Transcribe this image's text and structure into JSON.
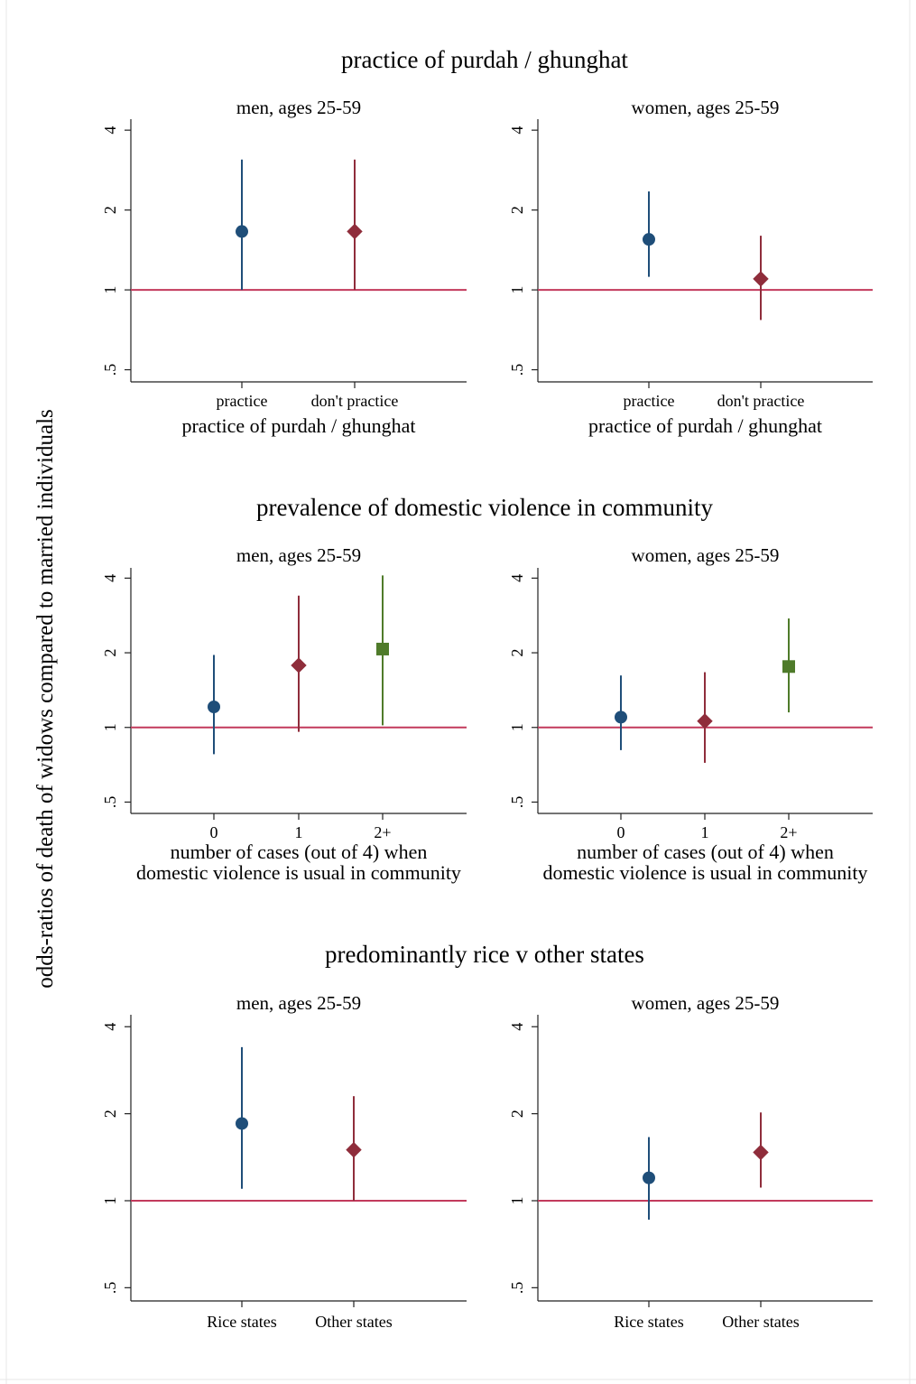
{
  "figure": {
    "ylabel": "odds-ratios of death of widows compared to married individuals",
    "colors": {
      "blue": "#1f4e79",
      "red": "#8f2d3b",
      "green": "#4f7b2a",
      "reference": "#c23a5c"
    },
    "icons": {
      "circle": "circle-marker-icon",
      "diamond": "diamond-marker-icon",
      "square": "square-marker-icon"
    }
  },
  "chart_data": [
    {
      "type": "scatter",
      "title": "practice of purdah / ghunghat",
      "subtitle": "men, ages 25-59",
      "xlabel": "practice of purdah / ghunghat",
      "categories": [
        "practice",
        "don't practice"
      ],
      "ylabel": "",
      "yscale": "log",
      "ylim": [
        0.45,
        4.4
      ],
      "yticks": [
        ".5",
        "1",
        "2",
        "4"
      ],
      "reference_line": 1,
      "points": [
        {
          "category": "practice",
          "estimate": 1.66,
          "ci_low": 1.0,
          "ci_high": 3.1,
          "marker": "circle",
          "color": "#1f4e79"
        },
        {
          "category": "don't practice",
          "estimate": 1.66,
          "ci_low": 1.0,
          "ci_high": 3.1,
          "marker": "diamond",
          "color": "#8f2d3b"
        }
      ]
    },
    {
      "type": "scatter",
      "title": "practice of purdah / ghunghat",
      "subtitle": "women, ages 25-59",
      "xlabel": "practice of purdah / ghunghat",
      "categories": [
        "practice",
        "don't practice"
      ],
      "ylabel": "",
      "yscale": "log",
      "ylim": [
        0.45,
        4.4
      ],
      "yticks": [
        ".5",
        "1",
        "2",
        "4"
      ],
      "reference_line": 1,
      "points": [
        {
          "category": "practice",
          "estimate": 1.55,
          "ci_low": 1.12,
          "ci_high": 2.35,
          "marker": "circle",
          "color": "#1f4e79"
        },
        {
          "category": "don't practice",
          "estimate": 1.1,
          "ci_low": 0.77,
          "ci_high": 1.6,
          "marker": "diamond",
          "color": "#8f2d3b"
        }
      ]
    },
    {
      "type": "scatter",
      "title": "prevalence of domestic violence in community",
      "subtitle": "men, ages 25-59",
      "xlabel": "number of cases (out of 4) when\ndomestic violence is usual in community",
      "categories": [
        "0",
        "1",
        "2+"
      ],
      "ylabel": "",
      "yscale": "log",
      "ylim": [
        0.45,
        4.4
      ],
      "yticks": [
        ".5",
        "1",
        "2",
        "4"
      ],
      "reference_line": 1,
      "points": [
        {
          "category": "0",
          "estimate": 1.21,
          "ci_low": 0.78,
          "ci_high": 1.96,
          "marker": "circle",
          "color": "#1f4e79"
        },
        {
          "category": "1",
          "estimate": 1.78,
          "ci_low": 0.96,
          "ci_high": 3.4,
          "marker": "diamond",
          "color": "#8f2d3b"
        },
        {
          "category": "2+",
          "estimate": 2.07,
          "ci_low": 1.02,
          "ci_high": 4.1,
          "marker": "square",
          "color": "#4f7b2a"
        }
      ]
    },
    {
      "type": "scatter",
      "title": "prevalence of domestic violence in community",
      "subtitle": "women, ages 25-59",
      "xlabel": "number of cases (out of 4) when\ndomestic violence is usual in community",
      "categories": [
        "0",
        "1",
        "2+"
      ],
      "ylabel": "",
      "yscale": "log",
      "ylim": [
        0.45,
        4.4
      ],
      "yticks": [
        ".5",
        "1",
        "2",
        "4"
      ],
      "reference_line": 1,
      "points": [
        {
          "category": "0",
          "estimate": 1.1,
          "ci_low": 0.81,
          "ci_high": 1.62,
          "marker": "circle",
          "color": "#1f4e79"
        },
        {
          "category": "1",
          "estimate": 1.06,
          "ci_low": 0.72,
          "ci_high": 1.67,
          "marker": "diamond",
          "color": "#8f2d3b"
        },
        {
          "category": "2+",
          "estimate": 1.76,
          "ci_low": 1.15,
          "ci_high": 2.75,
          "marker": "square",
          "color": "#4f7b2a"
        }
      ]
    },
    {
      "type": "scatter",
      "title": "predominantly rice v other states",
      "subtitle": "men, ages 25-59",
      "xlabel": "",
      "categories": [
        "Rice states",
        "Other states"
      ],
      "ylabel": "",
      "yscale": "log",
      "ylim": [
        0.45,
        4.4
      ],
      "yticks": [
        ".5",
        "1",
        "2",
        "4"
      ],
      "reference_line": 1,
      "points": [
        {
          "category": "Rice states",
          "estimate": 1.85,
          "ci_low": 1.1,
          "ci_high": 3.4,
          "marker": "circle",
          "color": "#1f4e79"
        },
        {
          "category": "Other states",
          "estimate": 1.5,
          "ci_low": 1.0,
          "ci_high": 2.3,
          "marker": "diamond",
          "color": "#8f2d3b"
        }
      ]
    },
    {
      "type": "scatter",
      "title": "predominantly rice v other states",
      "subtitle": "women, ages 25-59",
      "xlabel": "",
      "categories": [
        "Rice states",
        "Other states"
      ],
      "ylabel": "",
      "yscale": "log",
      "ylim": [
        0.45,
        4.4
      ],
      "yticks": [
        ".5",
        "1",
        "2",
        "4"
      ],
      "reference_line": 1,
      "points": [
        {
          "category": "Rice states",
          "estimate": 1.2,
          "ci_low": 0.86,
          "ci_high": 1.66,
          "marker": "circle",
          "color": "#1f4e79"
        },
        {
          "category": "Other states",
          "estimate": 1.47,
          "ci_low": 1.11,
          "ci_high": 2.02,
          "marker": "diamond",
          "color": "#8f2d3b"
        }
      ]
    }
  ]
}
